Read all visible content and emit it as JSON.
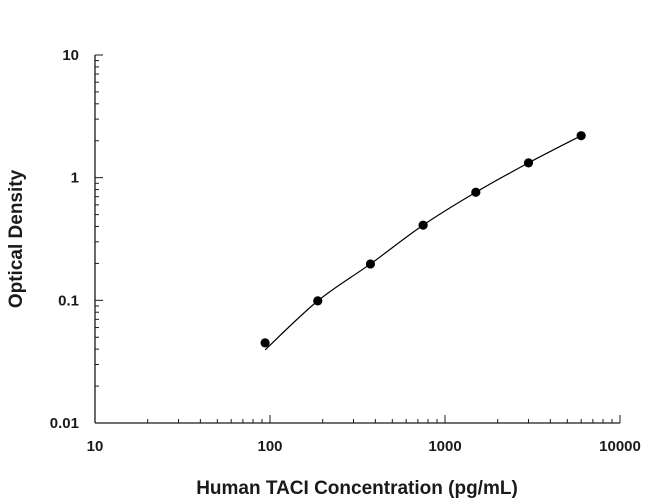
{
  "chart_data": {
    "type": "scatter",
    "title": "",
    "xlabel": "Human TACI Concentration (pg/mL)",
    "ylabel": "Optical Density",
    "x_scale": "log",
    "y_scale": "log",
    "xlim": [
      10,
      10000
    ],
    "ylim": [
      0.01,
      10
    ],
    "x_ticks": [
      "10",
      "100",
      "1000",
      "10000"
    ],
    "y_ticks": [
      "0.01",
      "0.1",
      "1",
      "10"
    ],
    "grid": false,
    "legend": "none",
    "series": [
      {
        "x": [
          93.75,
          187.5,
          375,
          750,
          1500,
          3000,
          6000
        ],
        "y": [
          0.045,
          0.099,
          0.198,
          0.41,
          0.76,
          1.32,
          2.2
        ],
        "marker": "circle",
        "fit_line": true
      }
    ],
    "colors": {
      "marker": "#000000",
      "axis": "#1a1a1a",
      "fit": "#000000"
    }
  }
}
